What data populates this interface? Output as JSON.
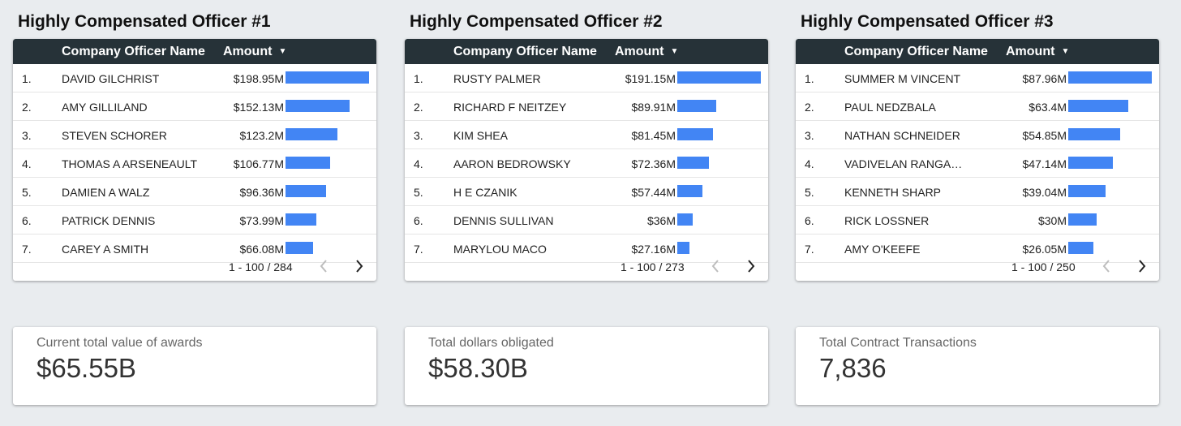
{
  "panels": [
    {
      "title": "Highly Compensated Officer #1",
      "header": {
        "name": "Company Officer Name",
        "amount": "Amount"
      },
      "rows": [
        {
          "rank": "1.",
          "name": "DAVID GILCHRIST",
          "amount": "$198.95M",
          "value": 198.95
        },
        {
          "rank": "2.",
          "name": "AMY GILLILAND",
          "amount": "$152.13M",
          "value": 152.13
        },
        {
          "rank": "3.",
          "name": "STEVEN SCHORER",
          "amount": "$123.2M",
          "value": 123.2
        },
        {
          "rank": "4.",
          "name": "THOMAS A ARSENEAULT",
          "amount": "$106.77M",
          "value": 106.77
        },
        {
          "rank": "5.",
          "name": "DAMIEN A WALZ",
          "amount": "$96.36M",
          "value": 96.36
        },
        {
          "rank": "6.",
          "name": "PATRICK DENNIS",
          "amount": "$73.99M",
          "value": 73.99
        },
        {
          "rank": "7.",
          "name": "CAREY A SMITH",
          "amount": "$66.08M",
          "value": 66.08
        }
      ],
      "pagination": "1 - 100 / 284",
      "kpi": {
        "label": "Current total value of awards",
        "value": "$65.55B"
      }
    },
    {
      "title": "Highly Compensated Officer #2",
      "header": {
        "name": "Company Officer Name",
        "amount": "Amount"
      },
      "rows": [
        {
          "rank": "1.",
          "name": "RUSTY PALMER",
          "amount": "$191.15M",
          "value": 191.15
        },
        {
          "rank": "2.",
          "name": "RICHARD F NEITZEY",
          "amount": "$89.91M",
          "value": 89.91
        },
        {
          "rank": "3.",
          "name": "KIM SHEA",
          "amount": "$81.45M",
          "value": 81.45
        },
        {
          "rank": "4.",
          "name": "AARON BEDROWSKY",
          "amount": "$72.36M",
          "value": 72.36
        },
        {
          "rank": "5.",
          "name": "H E CZANIK",
          "amount": "$57.44M",
          "value": 57.44
        },
        {
          "rank": "6.",
          "name": "DENNIS SULLIVAN",
          "amount": "$36M",
          "value": 36
        },
        {
          "rank": "7.",
          "name": "MARYLOU MACO",
          "amount": "$27.16M",
          "value": 27.16
        }
      ],
      "pagination": "1 - 100 / 273",
      "kpi": {
        "label": "Total dollars obligated",
        "value": "$58.30B"
      }
    },
    {
      "title": "Highly Compensated Officer #3",
      "header": {
        "name": "Company Officer Name",
        "amount": "Amount"
      },
      "rows": [
        {
          "rank": "1.",
          "name": "SUMMER M VINCENT",
          "amount": "$87.96M",
          "value": 87.96
        },
        {
          "rank": "2.",
          "name": "PAUL NEDZBALA",
          "amount": "$63.4M",
          "value": 63.4
        },
        {
          "rank": "3.",
          "name": "NATHAN SCHNEIDER",
          "amount": "$54.85M",
          "value": 54.85
        },
        {
          "rank": "4.",
          "name": "VADIVELAN RANGANATHAN",
          "amount": "$47.14M",
          "value": 47.14
        },
        {
          "rank": "5.",
          "name": "KENNETH SHARP",
          "amount": "$39.04M",
          "value": 39.04
        },
        {
          "rank": "6.",
          "name": "RICK LOSSNER",
          "amount": "$30M",
          "value": 30
        },
        {
          "rank": "7.",
          "name": "AMY O'KEEFE",
          "amount": "$26.05M",
          "value": 26.05
        }
      ],
      "pagination": "1 - 100 / 250",
      "kpi": {
        "label": "Total Contract Transactions",
        "value": "7,836"
      }
    }
  ],
  "colors": {
    "bar": "#4285f4",
    "header_bg": "#263238"
  },
  "icons": {
    "sort": "sort-down-icon",
    "prev": "chevron-left-icon",
    "next": "chevron-right-icon"
  }
}
